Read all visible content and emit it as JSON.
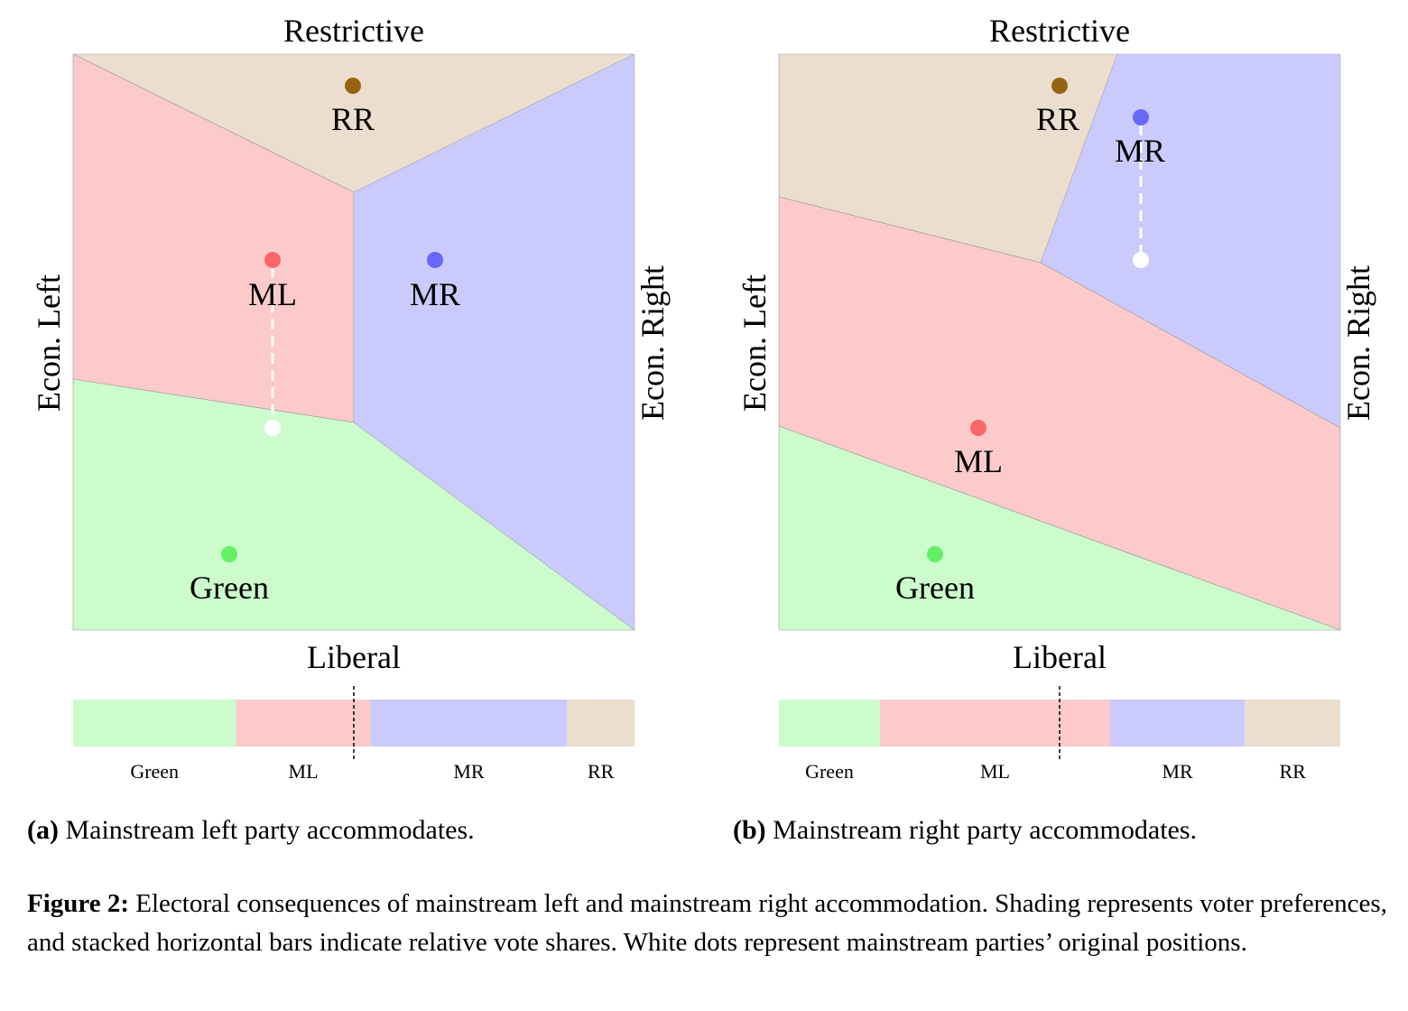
{
  "colors": {
    "Green": {
      "fill": "#ccfccc",
      "dot": "#64f064"
    },
    "ML": {
      "fill": "#fccaca",
      "dot": "#f86868"
    },
    "MR": {
      "fill": "#cacafc",
      "dot": "#6868f8"
    },
    "RR": {
      "fill": "#ecdece",
      "dot": "#966410"
    },
    "original_position": "#ffffff"
  },
  "axes": {
    "top": "Restrictive",
    "bottom": "Liberal",
    "left": "Econ. Left",
    "right": "Econ. Right"
  },
  "parties": [
    "Green",
    "ML",
    "MR",
    "RR"
  ],
  "panels": [
    {
      "label": "(a)",
      "title": "Mainstream left party accommodates.",
      "vote_shares": {
        "Green": 0.29,
        "ML": 0.24,
        "MR": 0.35,
        "RR": 0.12
      },
      "bar_labels": [
        "Green",
        "ML",
        "MR",
        "RR"
      ]
    },
    {
      "label": "(b)",
      "title": "Mainstream right party accommodates.",
      "vote_shares": {
        "Green": 0.18,
        "ML": 0.41,
        "MR": 0.24,
        "RR": 0.17
      },
      "bar_labels": [
        "Green",
        "ML",
        "MR",
        "RR"
      ]
    }
  ],
  "caption": {
    "label": "Figure 2:",
    "text": " Electoral consequences of mainstream left and mainstream right accommodation. Shading represents voter preferences, and stacked horizontal bars indicate relative vote shares. White dots represent mainstream parties’ original positions."
  }
}
